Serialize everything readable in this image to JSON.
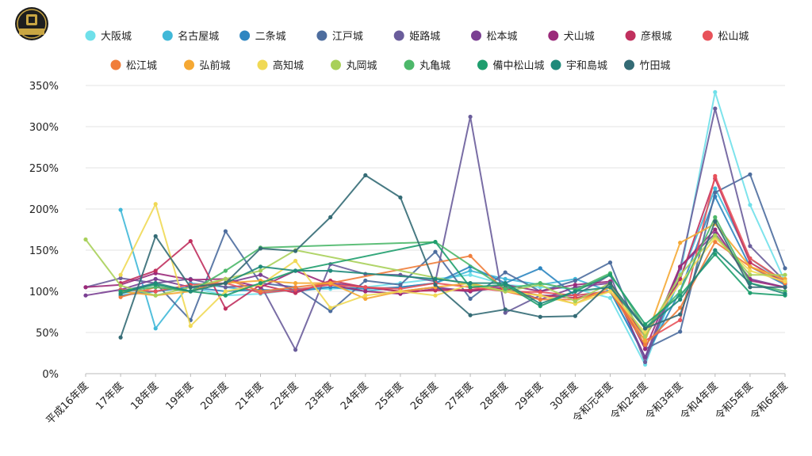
{
  "chart_data": {
    "type": "line",
    "title": "",
    "xlabel": "",
    "ylabel": "",
    "ylim": [
      0,
      350
    ],
    "yticks": [
      0,
      50,
      100,
      150,
      200,
      250,
      300,
      350
    ],
    "ytick_labels": [
      "0%",
      "50%",
      "100%",
      "150%",
      "200%",
      "250%",
      "300%",
      "350%"
    ],
    "y_unit": "percent",
    "grid": true,
    "legend_position": "top",
    "categories": [
      "平成16年度",
      "17年度",
      "18年度",
      "19年度",
      "20年度",
      "21年度",
      "22年度",
      "23年度",
      "24年度",
      "25年度",
      "26年度",
      "27年度",
      "28年度",
      "29年度",
      "30年度",
      "令和元年度",
      "令和2年度",
      "令和3年度",
      "令和4年度",
      "令和5年度",
      "令和6年度"
    ],
    "series": [
      {
        "name": "大阪城",
        "color": "#6fe0ea",
        "values": [
          null,
          98,
          100,
          105,
          95,
          97,
          102,
          103,
          105,
          110,
          115,
          120,
          108,
          105,
          103,
          92,
          11,
          120,
          342,
          205,
          112
        ]
      },
      {
        "name": "名古屋城",
        "color": "#40b8d8",
        "values": [
          null,
          199,
          55,
          110,
          105,
          100,
          103,
          105,
          100,
          105,
          110,
          125,
          115,
          108,
          115,
          100,
          20,
          115,
          225,
          140,
          110
        ]
      },
      {
        "name": "二条城",
        "color": "#2e86c1",
        "values": [
          null,
          95,
          100,
          105,
          100,
          102,
          100,
          105,
          103,
          105,
          110,
          130,
          110,
          128,
          95,
          100,
          20,
          100,
          215,
          130,
          108
        ]
      },
      {
        "name": "江戸城",
        "color": "#4d6d9e",
        "values": [
          null,
          100,
          110,
          65,
          173,
          110,
          105,
          76,
          113,
          108,
          148,
          91,
          123,
          100,
          113,
          135,
          30,
          51,
          220,
          242,
          128
        ]
      },
      {
        "name": "姫路城",
        "color": "#6a5d9b",
        "values": [
          105,
          116,
          110,
          115,
          105,
          108,
          29,
          133,
          121,
          120,
          112,
          312,
          74,
          95,
          95,
          120,
          14,
          128,
          322,
          155,
          112
        ]
      },
      {
        "name": "松本城",
        "color": "#7a3f92",
        "values": [
          95,
          102,
          115,
          105,
          110,
          120,
          100,
          110,
          105,
          100,
          105,
          100,
          105,
          90,
          105,
          110,
          20,
          130,
          170,
          115,
          105
        ]
      },
      {
        "name": "犬山城",
        "color": "#9b2a7a",
        "values": [
          105,
          108,
          122,
          114,
          115,
          105,
          125,
          108,
          100,
          97,
          103,
          100,
          108,
          100,
          108,
          112,
          30,
          130,
          175,
          113,
          105
        ]
      },
      {
        "name": "彦根城",
        "color": "#c0305e",
        "values": [
          null,
          110,
          125,
          161,
          79,
          108,
          98,
          113,
          105,
          100,
          101,
          102,
          103,
          95,
          92,
          100,
          45,
          115,
          237,
          135,
          110
        ]
      },
      {
        "name": "松山城",
        "color": "#e8525a",
        "values": [
          null,
          102,
          100,
          108,
          110,
          98,
          102,
          108,
          105,
          103,
          110,
          105,
          100,
          99,
          95,
          100,
          40,
          65,
          240,
          140,
          112
        ]
      },
      {
        "name": "松江城",
        "color": "#f07d3a",
        "values": [
          null,
          93,
          105,
          100,
          115,
          100,
          105,
          110,
          null,
          null,
          null,
          143,
          100,
          90,
          90,
          100,
          35,
          80,
          160,
          130,
          110
        ]
      },
      {
        "name": "弘前城",
        "color": "#f5a833",
        "values": [
          null,
          100,
          95,
          100,
          110,
          113,
          110,
          110,
          91,
          100,
          105,
          110,
          100,
          95,
          85,
          105,
          40,
          159,
          182,
          130,
          115
        ]
      },
      {
        "name": "高知城",
        "color": "#f0d955",
        "values": [
          null,
          120,
          206,
          58,
          100,
          108,
          137,
          80,
          95,
          100,
          95,
          108,
          100,
          95,
          85,
          100,
          50,
          110,
          165,
          125,
          112
        ]
      },
      {
        "name": "丸岡城",
        "color": "#a8d05a",
        "values": [
          163,
          107,
          95,
          105,
          115,
          125,
          150,
          null,
          null,
          null,
          null,
          null,
          100,
          108,
          88,
          110,
          45,
          120,
          168,
          120,
          120
        ]
      },
      {
        "name": "丸亀城",
        "color": "#4db86a",
        "values": [
          null,
          100,
          105,
          100,
          125,
          153,
          null,
          null,
          null,
          null,
          160,
          null,
          103,
          110,
          102,
          122,
          55,
          100,
          190,
          110,
          100
        ]
      },
      {
        "name": "備中松山城",
        "color": "#1f9e6e",
        "values": [
          null,
          100,
          108,
          100,
          95,
          110,
          125,
          null,
          null,
          null,
          160,
          105,
          108,
          82,
          100,
          120,
          60,
          95,
          145,
          98,
          95
        ]
      },
      {
        "name": "宇和島城",
        "color": "#1f8a7a",
        "values": [
          null,
          97,
          110,
          100,
          110,
          130,
          125,
          125,
          null,
          null,
          115,
          110,
          110,
          85,
          100,
          105,
          55,
          90,
          150,
          110,
          97
        ]
      },
      {
        "name": "竹田城",
        "color": "#346b75",
        "values": [
          null,
          44,
          167,
          105,
          110,
          152,
          149,
          190,
          241,
          214,
          108,
          71,
          78,
          69,
          70,
          110,
          55,
          72,
          185,
          105,
          105
        ]
      }
    ]
  }
}
